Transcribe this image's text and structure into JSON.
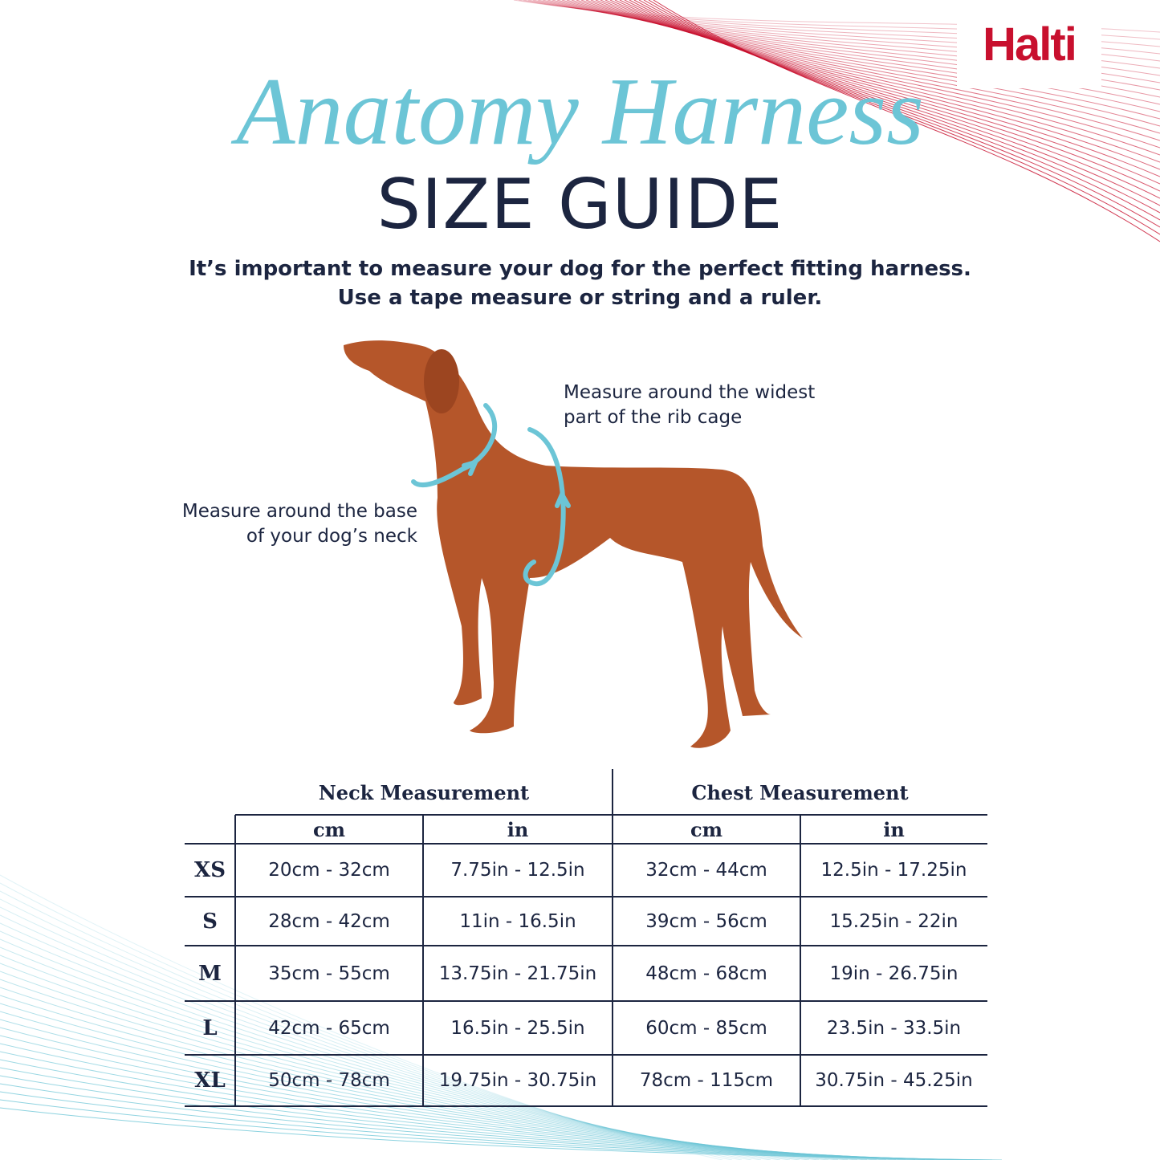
{
  "logo": "Halti",
  "title": "Anatomy Harness",
  "subtitle": "SIZE GUIDE",
  "intro": [
    "It’s important to measure your dog for the perfect fitting harness.",
    "Use a tape measure or string and a ruler."
  ],
  "callouts": {
    "chest": [
      "Measure around the widest",
      "part of the rib cage"
    ],
    "neck": [
      "Measure around the base",
      "of your dog’s neck"
    ]
  },
  "table": {
    "groups": [
      "Neck Measurement",
      "Chest Measurement"
    ],
    "units": [
      "cm",
      "in",
      "cm",
      "in"
    ],
    "rows": [
      [
        "XS",
        "20cm - 32cm",
        "7.75in - 12.5in",
        "32cm - 44cm",
        "12.5in - 17.25in"
      ],
      [
        "S",
        "28cm - 42cm",
        "11in - 16.5in",
        "39cm - 56cm",
        "15.25in - 22in"
      ],
      [
        "M",
        "35cm - 55cm",
        "13.75in - 21.75in",
        "48cm - 68cm",
        "19in - 26.75in"
      ],
      [
        "L",
        "42cm - 65cm",
        "16.5in - 25.5in",
        "60cm - 85cm",
        "23.5in - 33.5in"
      ],
      [
        "XL",
        "50cm - 78cm",
        "19.75in - 30.75in",
        "78cm - 115cm",
        "30.75in - 45.25in"
      ]
    ]
  }
}
